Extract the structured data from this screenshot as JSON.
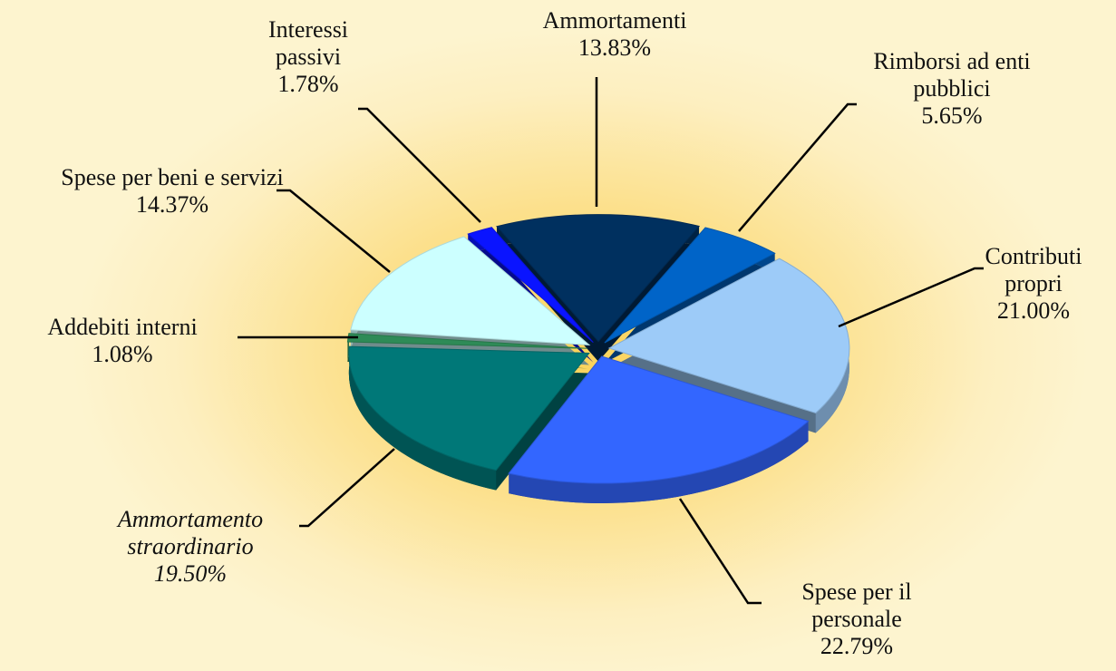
{
  "chart_data": {
    "type": "pie",
    "categories": [
      "Ammortamenti",
      "Rimborsi ad enti pubblici",
      "Contributi propri",
      "Spese per il personale",
      "Ammortamento straordinario",
      "Addebiti interni",
      "Spese per beni e servizi",
      "Interessi passivi"
    ],
    "values": [
      13.83,
      5.65,
      21.0,
      22.79,
      19.5,
      1.08,
      14.37,
      1.78
    ],
    "value_labels": [
      "13.83%",
      "5.65%",
      "21.00%",
      "22.79%",
      "19.50%",
      "1.08%",
      "14.37%",
      "1.78%"
    ],
    "colors": [
      "#00305f",
      "#0064c8",
      "#9dcbf8",
      "#3366ff",
      "#007878",
      "#2e8b57",
      "#ccffff",
      "#0a14ff"
    ]
  }
}
